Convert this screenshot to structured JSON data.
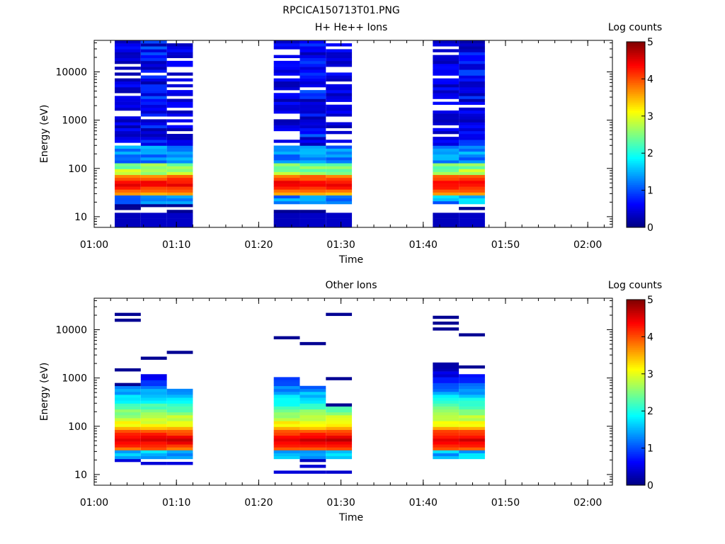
{
  "figure_title": "RPCICA150713T01.PNG",
  "colors": {
    "colormap": [
      "#00007f",
      "#0000ff",
      "#0080ff",
      "#00ffff",
      "#80ff80",
      "#ffff00",
      "#ff8000",
      "#ff0000",
      "#7f0000"
    ]
  },
  "chart_data": [
    {
      "type": "heatmap",
      "title": "H+ He++ Ions",
      "xlabel": "Time",
      "ylabel": "Energy (eV)",
      "x_ticks": [
        "01:00",
        "01:10",
        "01:20",
        "01:30",
        "01:40",
        "01:50",
        "02:00"
      ],
      "x_range": [
        "01:00",
        "02:03"
      ],
      "y_scale": "log",
      "y_ticks": [
        10,
        100,
        1000,
        10000
      ],
      "y_tick_labels": [
        "10",
        "100",
        "1000",
        "10000"
      ],
      "y_range": [
        6,
        45000
      ],
      "colorbar": {
        "label": "Log counts",
        "range": [
          0,
          5
        ],
        "ticks": [
          "0",
          "1",
          "2",
          "3",
          "4",
          "5"
        ]
      },
      "columns": [
        {
          "t_start": "01:02:30",
          "t_end": "01:05:40",
          "pattern": "A"
        },
        {
          "t_start": "01:05:40",
          "t_end": "01:08:50",
          "pattern": "B"
        },
        {
          "t_start": "01:08:50",
          "t_end": "01:12:00",
          "pattern": "C"
        },
        {
          "t_start": "01:21:50",
          "t_end": "01:25:00",
          "pattern": "A"
        },
        {
          "t_start": "01:25:00",
          "t_end": "01:28:10",
          "pattern": "B"
        },
        {
          "t_start": "01:28:10",
          "t_end": "01:31:20",
          "pattern": "C"
        },
        {
          "t_start": "01:41:10",
          "t_end": "01:44:20",
          "pattern": "A"
        },
        {
          "t_start": "01:44:20",
          "t_end": "01:47:30",
          "pattern": "B"
        }
      ]
    },
    {
      "type": "heatmap",
      "title": "Other Ions",
      "xlabel": "Time",
      "ylabel": "Energy (eV)",
      "x_ticks": [
        "01:00",
        "01:10",
        "01:20",
        "01:30",
        "01:40",
        "01:50",
        "02:00"
      ],
      "x_range": [
        "01:00",
        "02:03"
      ],
      "y_scale": "log",
      "y_ticks": [
        10,
        100,
        1000,
        10000
      ],
      "y_tick_labels": [
        "10",
        "100",
        "1000",
        "10000"
      ],
      "y_range": [
        6,
        45000
      ],
      "colorbar": {
        "label": "Log counts",
        "range": [
          0,
          5
        ],
        "ticks": [
          "0",
          "1",
          "2",
          "3",
          "4",
          "5"
        ]
      },
      "columns": [
        {
          "t_start": "01:02:30",
          "t_end": "01:05:40",
          "pattern": "A"
        },
        {
          "t_start": "01:05:40",
          "t_end": "01:08:50",
          "pattern": "B"
        },
        {
          "t_start": "01:08:50",
          "t_end": "01:12:00",
          "pattern": "C"
        },
        {
          "t_start": "01:21:50",
          "t_end": "01:25:00",
          "pattern": "A"
        },
        {
          "t_start": "01:25:00",
          "t_end": "01:28:10",
          "pattern": "B"
        },
        {
          "t_start": "01:28:10",
          "t_end": "01:31:20",
          "pattern": "C"
        },
        {
          "t_start": "01:41:10",
          "t_end": "01:44:20",
          "pattern": "A"
        },
        {
          "t_start": "01:44:20",
          "t_end": "01:47:30",
          "pattern": "B"
        }
      ]
    }
  ]
}
